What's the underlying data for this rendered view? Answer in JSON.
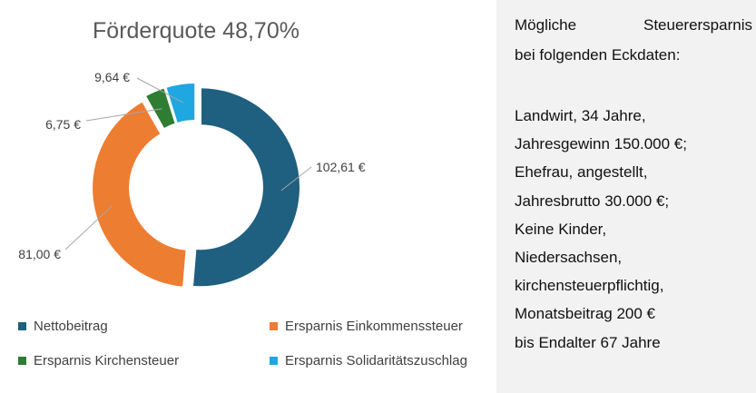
{
  "chart_data": {
    "type": "pie",
    "title": "Förderquote 48,70%",
    "categories": [
      "Nettobeitrag",
      "Ersparnis Einkommenssteuer",
      "Ersparnis Kirchensteuer",
      "Ersparnis Solidaritätszuschlag"
    ],
    "values": [
      102.61,
      81.0,
      6.75,
      9.64
    ],
    "data_labels": [
      "102,61 €",
      "81,00 €",
      "6,75 €",
      "9,64 €"
    ],
    "colors": [
      "#1f5f7f",
      "#ed7d31",
      "#2e7d32",
      "#1ea7e1"
    ],
    "donut": true,
    "legend": "bottom"
  },
  "info": {
    "line1_left": "Mögliche",
    "line1_right": "Steuerersparnis",
    "line2": "bei folgenden Eckdaten:",
    "lines": [
      "Landwirt, 34 Jahre,",
      "Jahresgewinn 150.000 €;",
      "Ehefrau, angestellt,",
      "Jahresbrutto 30.000 €;",
      "Keine Kinder,",
      "Niedersachsen,",
      "kirchensteuerpflichtig,",
      "Monatsbeitrag 200 €",
      "bis Endalter 67 Jahre"
    ]
  }
}
